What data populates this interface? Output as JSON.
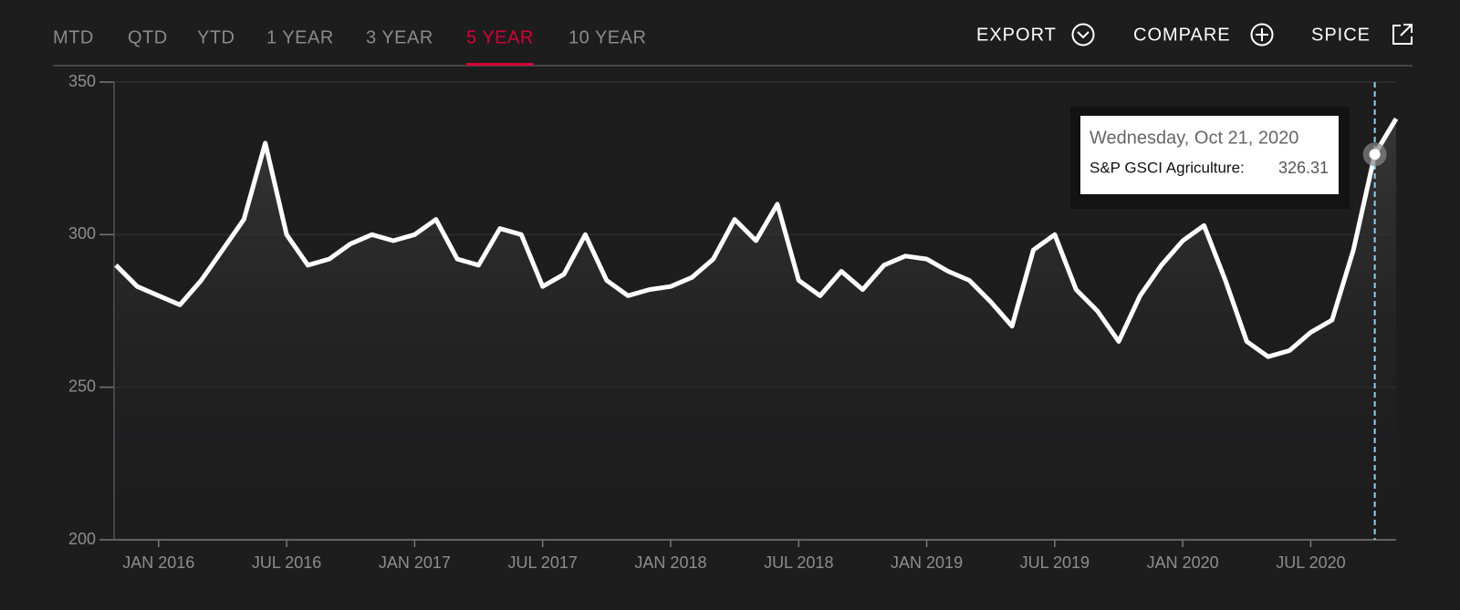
{
  "tabs": [
    "MTD",
    "QTD",
    "YTD",
    "1 YEAR",
    "3 YEAR",
    "5 YEAR",
    "10 YEAR"
  ],
  "active_tab": 5,
  "actions": [
    "EXPORT",
    "COMPARE",
    "SPICE"
  ],
  "chart_data": {
    "type": "line",
    "x": [
      "2015-11",
      "2015-12",
      "2016-01",
      "2016-02",
      "2016-03",
      "2016-04",
      "2016-05",
      "2016-06",
      "2016-07",
      "2016-08",
      "2016-09",
      "2016-10",
      "2016-11",
      "2016-12",
      "2017-01",
      "2017-02",
      "2017-03",
      "2017-04",
      "2017-05",
      "2017-06",
      "2017-07",
      "2017-08",
      "2017-09",
      "2017-10",
      "2017-11",
      "2017-12",
      "2018-01",
      "2018-02",
      "2018-03",
      "2018-04",
      "2018-05",
      "2018-06",
      "2018-07",
      "2018-08",
      "2018-09",
      "2018-10",
      "2018-11",
      "2018-12",
      "2019-01",
      "2019-02",
      "2019-03",
      "2019-04",
      "2019-05",
      "2019-06",
      "2019-07",
      "2019-08",
      "2019-09",
      "2019-10",
      "2019-11",
      "2019-12",
      "2020-01",
      "2020-02",
      "2020-03",
      "2020-04",
      "2020-05",
      "2020-06",
      "2020-07",
      "2020-08",
      "2020-09",
      "2020-10",
      "2020-11"
    ],
    "values": [
      290,
      283,
      280,
      277,
      285,
      295,
      305,
      330,
      300,
      290,
      292,
      297,
      300,
      298,
      300,
      305,
      292,
      290,
      302,
      300,
      283,
      287,
      300,
      285,
      280,
      282,
      283,
      286,
      292,
      305,
      298,
      310,
      285,
      280,
      288,
      282,
      290,
      293,
      292,
      288,
      285,
      278,
      270,
      295,
      300,
      282,
      275,
      265,
      280,
      290,
      298,
      303,
      285,
      265,
      260,
      262,
      268,
      272,
      295,
      326.31,
      338
    ],
    "color": "#ffffff",
    "xlim": [
      "2015-11",
      "2020-11"
    ],
    "xticks": [
      {
        "value": "2016-01",
        "label": "JAN 2016"
      },
      {
        "value": "2016-07",
        "label": "JUL 2016"
      },
      {
        "value": "2017-01",
        "label": "JAN 2017"
      },
      {
        "value": "2017-07",
        "label": "JUL 2017"
      },
      {
        "value": "2018-01",
        "label": "JAN 2018"
      },
      {
        "value": "2018-07",
        "label": "JUL 2018"
      },
      {
        "value": "2019-01",
        "label": "JAN 2019"
      },
      {
        "value": "2019-07",
        "label": "JUL 2019"
      },
      {
        "value": "2020-01",
        "label": "JAN 2020"
      },
      {
        "value": "2020-07",
        "label": "JUL 2020"
      }
    ],
    "ylim": [
      200,
      350
    ],
    "yticks": [
      200,
      250,
      300,
      350
    ],
    "grid": true,
    "tooltip": {
      "date": "Wednesday, Oct 21, 2020",
      "label": "S&P GSCI Agriculture:",
      "value": 326.31
    }
  }
}
